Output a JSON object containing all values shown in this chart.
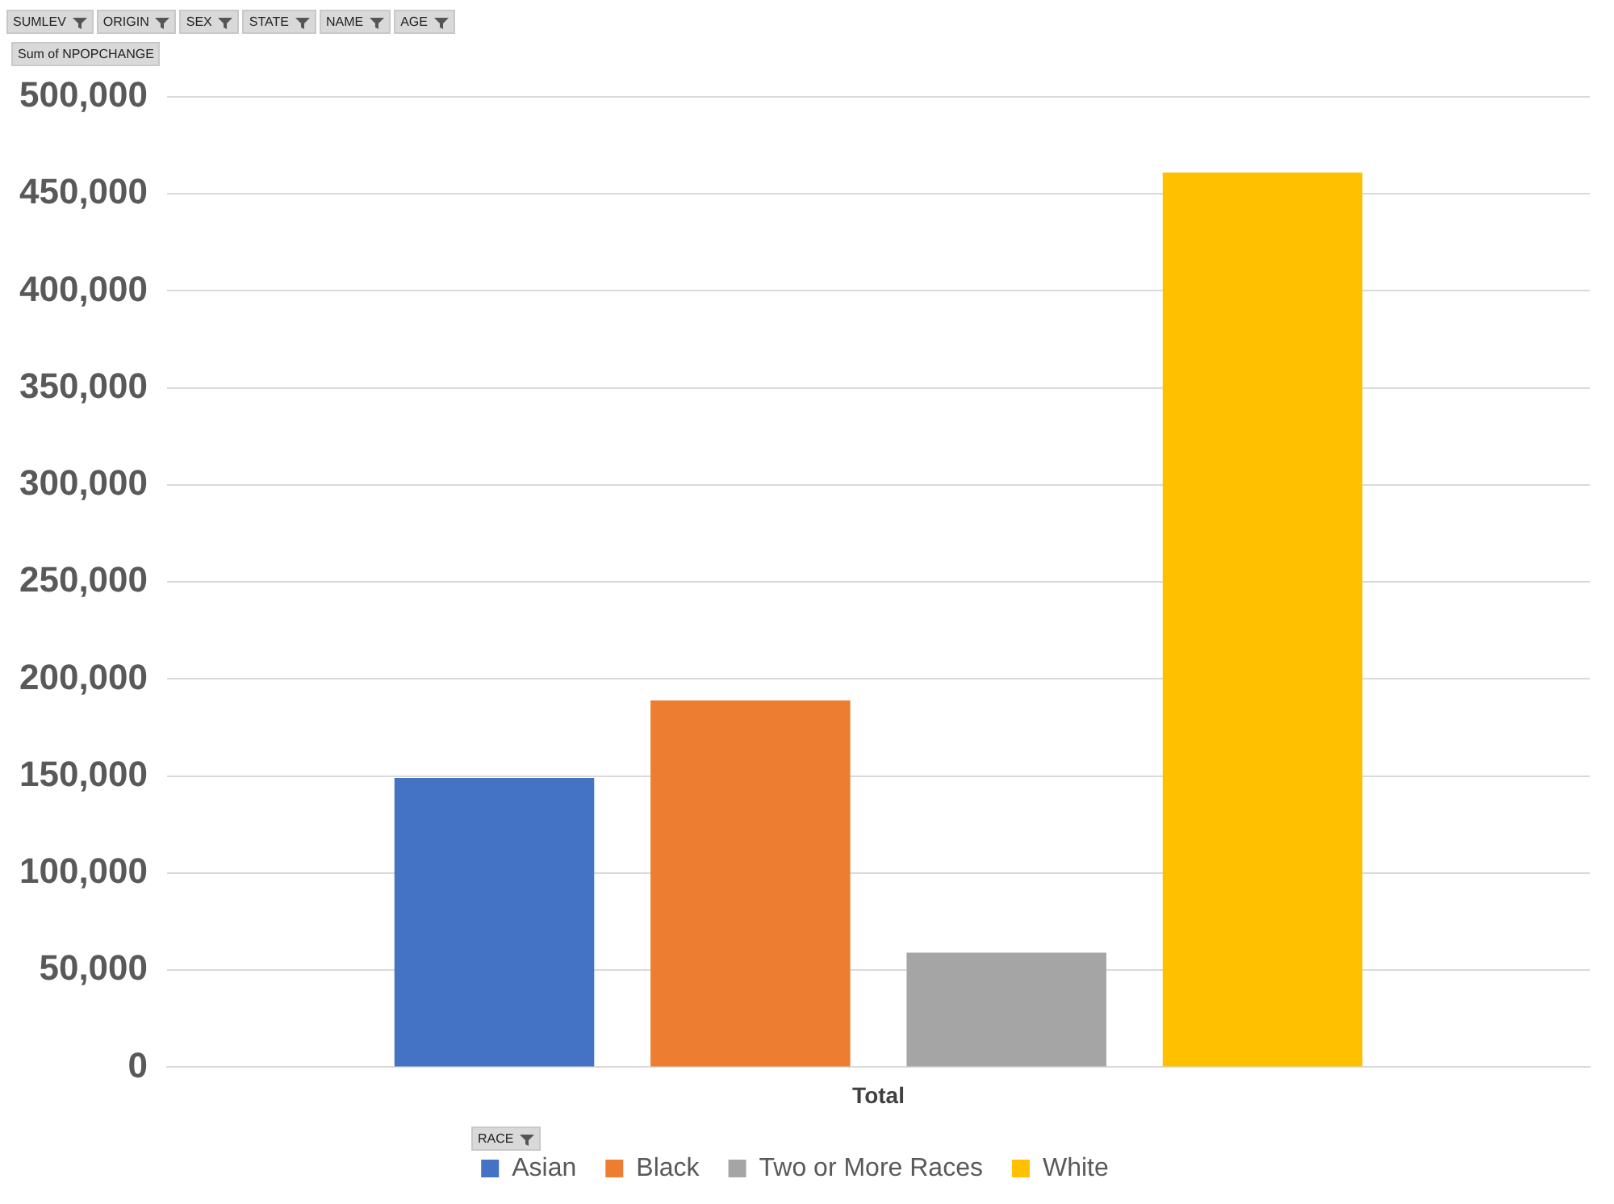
{
  "chart_data": {
    "type": "bar",
    "categories": [
      "Total"
    ],
    "series": [
      {
        "name": "Asian",
        "color": "#4472c4",
        "values": [
          149000
        ]
      },
      {
        "name": "Black",
        "color": "#ed7d31",
        "values": [
          189000
        ]
      },
      {
        "name": "Two or More Races",
        "color": "#a5a5a5",
        "values": [
          59000
        ]
      },
      {
        "name": "White",
        "color": "#ffc000",
        "values": [
          461000
        ]
      }
    ],
    "ylim": [
      0,
      500000
    ],
    "yticks": [
      0,
      {
        "value": 50000,
        "label": "50,000"
      },
      {
        "value": 100000,
        "label": "100,000"
      },
      {
        "value": 150000,
        "label": "150,000"
      },
      {
        "value": 200000,
        "label": "200,000"
      },
      {
        "value": 250000,
        "label": "250,000"
      },
      {
        "value": 300000,
        "label": "300,000"
      },
      {
        "value": 350000,
        "label": "350,000"
      },
      {
        "value": 400000,
        "label": "400,000"
      },
      {
        "value": 450000,
        "label": "450,000"
      },
      {
        "value": 500000,
        "label": "500,000"
      }
    ],
    "grid": "y",
    "legend": "bottom",
    "legend_title": "RACE",
    "annotations": [
      "SUMLEV",
      "ORIGIN",
      "SEX",
      "STATE",
      "NAME",
      "AGE",
      "Sum of NPOPCHANGE"
    ]
  }
}
